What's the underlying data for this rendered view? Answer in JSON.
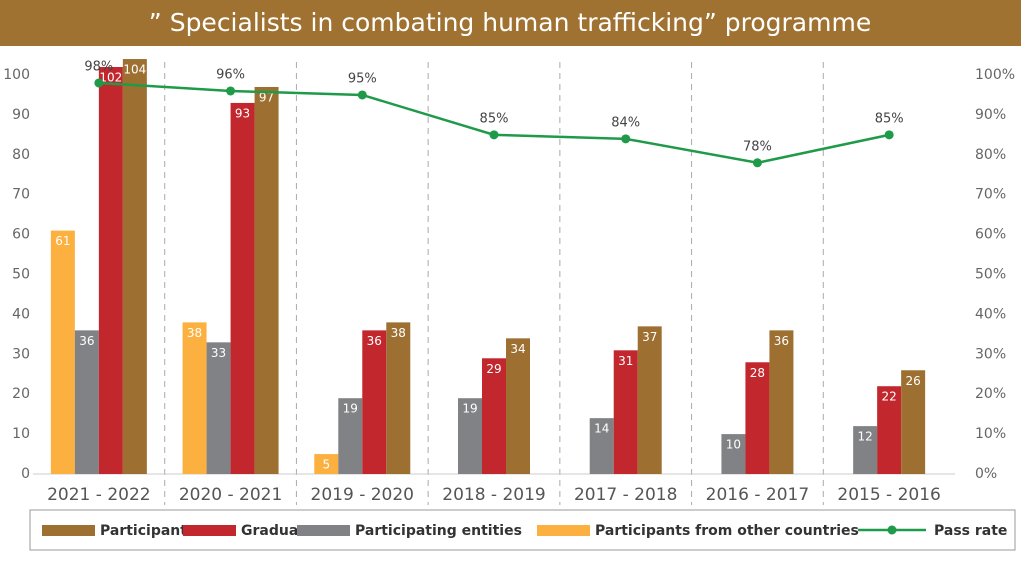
{
  "chart_data": {
    "type": "bar",
    "title": "” Specialists in combating human trafficking” programme",
    "categories": [
      "2021 - 2022",
      "2020 - 2021",
      "2019 - 2020",
      "2018 - 2019",
      "2017 - 2018",
      "2016 - 2017",
      "2015 - 2016"
    ],
    "series": [
      {
        "name": "Participants",
        "color": "#9d7032",
        "values": [
          104,
          97,
          38,
          34,
          37,
          36,
          26
        ]
      },
      {
        "name": "Graduates",
        "color": "#c1272d",
        "values": [
          102,
          93,
          36,
          29,
          31,
          28,
          22
        ]
      },
      {
        "name": "Participating entities",
        "color": "#808285",
        "values": [
          36,
          33,
          19,
          19,
          14,
          10,
          12
        ]
      },
      {
        "name": "Participants from other countries",
        "color": "#fbb040",
        "values": [
          61,
          38,
          5,
          null,
          null,
          null,
          null
        ]
      },
      {
        "name": "Pass rate",
        "type": "line",
        "axis": "y2",
        "color": "#1f9a48",
        "values": [
          98,
          96,
          95,
          85,
          84,
          78,
          85
        ],
        "value_labels": [
          "98%",
          "96%",
          "95%",
          "85%",
          "84%",
          "78%",
          "85%"
        ]
      }
    ],
    "ylim": [
      0,
      100
    ],
    "yticks": [
      0,
      10,
      20,
      30,
      40,
      50,
      60,
      70,
      80,
      90,
      100
    ],
    "y2lim": [
      0,
      100
    ],
    "y2ticks": [
      {
        "value": 0,
        "label": "0%"
      },
      {
        "value": 10,
        "label": "10%"
      },
      {
        "value": 20,
        "label": "20%"
      },
      {
        "value": 30,
        "label": "30%"
      },
      {
        "value": 40,
        "label": "40%"
      },
      {
        "value": 50,
        "label": "50%"
      },
      {
        "value": 60,
        "label": "60%"
      },
      {
        "value": 70,
        "label": "70%"
      },
      {
        "value": 80,
        "label": "80%"
      },
      {
        "value": 90,
        "label": "90%"
      },
      {
        "value": 100,
        "label": "100%"
      }
    ],
    "grid": false,
    "legend": "bottom"
  }
}
